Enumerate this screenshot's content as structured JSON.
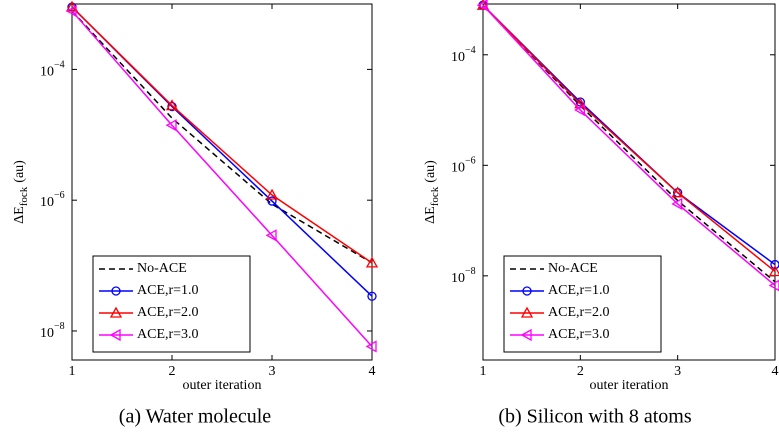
{
  "chart_data": [
    {
      "type": "line",
      "caption": "(a) Water molecule",
      "xlabel": "outer iteration",
      "ylabel": "ΔE",
      "ylabel_sub": "fock",
      "ylabel_unit": "(au)",
      "x": [
        1,
        2,
        3,
        4
      ],
      "xlim": [
        1,
        4
      ],
      "xticks": [
        1,
        2,
        3,
        4
      ],
      "yscale": "log",
      "ylim": [
        3.6e-09,
        0.001
      ],
      "yticks": [
        {
          "value": 0.0001,
          "label": "10",
          "exponent": "−4"
        },
        {
          "value": 1e-06,
          "label": "10",
          "exponent": "−6"
        },
        {
          "value": 1e-08,
          "label": "10",
          "exponent": "−8"
        }
      ],
      "legend": "lower left",
      "series": [
        {
          "name": "No-ACE",
          "color": "#000000",
          "linestyle": "--",
          "marker": null,
          "values": [
            0.00078,
            1.8e-05,
            8.7e-07,
            1.1e-07
          ]
        },
        {
          "name": "ACE,r=1.0",
          "color": "#0000ff",
          "linestyle": "-",
          "marker": "o",
          "values": [
            0.0009,
            2.7e-05,
            9.7e-07,
            3.4e-08
          ]
        },
        {
          "name": "ACE,r=2.0",
          "color": "#ff0000",
          "linestyle": "-",
          "marker": "^",
          "values": [
            0.0009,
            2.8e-05,
            1.2e-06,
            1.1e-07
          ]
        },
        {
          "name": "ACE,r=3.0",
          "color": "#ff00ff",
          "linestyle": "-",
          "marker": "<",
          "values": [
            0.00078,
            1.4e-05,
            2.9e-07,
            5.8e-09
          ]
        }
      ]
    },
    {
      "type": "line",
      "caption": "(b) Silicon with 8 atoms",
      "xlabel": "outer iteration",
      "ylabel": "ΔE",
      "ylabel_sub": "fock",
      "ylabel_unit": "(au)",
      "x": [
        1,
        2,
        3,
        4
      ],
      "xlim": [
        1,
        4
      ],
      "xticks": [
        1,
        2,
        3,
        4
      ],
      "yscale": "log",
      "ylim": [
        3e-10,
        0.00083
      ],
      "yticks": [
        {
          "value": 0.0001,
          "label": "10",
          "exponent": "−4"
        },
        {
          "value": 1e-06,
          "label": "10",
          "exponent": "−6"
        },
        {
          "value": 1e-08,
          "label": "10",
          "exponent": "−8"
        }
      ],
      "legend": "lower left",
      "series": [
        {
          "name": "No-ACE",
          "color": "#000000",
          "linestyle": "--",
          "marker": null,
          "values": [
            0.00079,
            1.2e-05,
            2.3e-07,
            7.8e-09
          ]
        },
        {
          "name": "ACE,r=1.0",
          "color": "#0000ff",
          "linestyle": "-",
          "marker": "o",
          "values": [
            0.00079,
            1.4e-05,
            3.2e-07,
            1.6e-08
          ]
        },
        {
          "name": "ACE,r=2.0",
          "color": "#ff0000",
          "linestyle": "-",
          "marker": "^",
          "values": [
            0.00079,
            1.3e-05,
            3.2e-07,
            1.2e-08
          ]
        },
        {
          "name": "ACE,r=3.0",
          "color": "#ff00ff",
          "linestyle": "-",
          "marker": "<",
          "values": [
            0.00079,
            1e-05,
            2e-07,
            6.7e-09
          ]
        }
      ]
    }
  ]
}
